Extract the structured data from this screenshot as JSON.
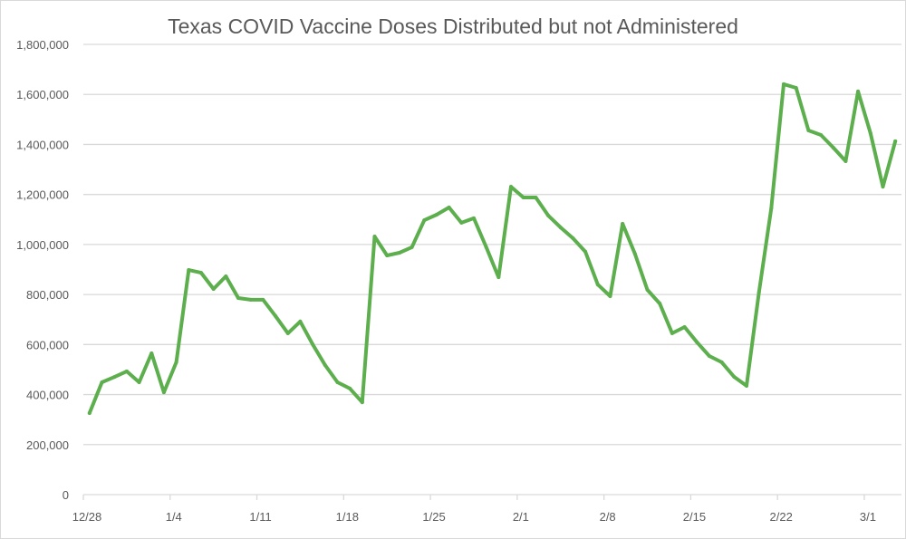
{
  "chart_data": {
    "type": "line",
    "title": "Texas COVID Vaccine Doses Distributed but not Administered",
    "xlabel": "",
    "ylabel": "",
    "ylim": [
      0,
      1800000
    ],
    "y_ticks": [
      0,
      200000,
      400000,
      600000,
      800000,
      1000000,
      1200000,
      1400000,
      1600000,
      1800000
    ],
    "y_tick_labels": [
      "0",
      "200,000",
      "400,000",
      "600,000",
      "800,000",
      "1,000,000",
      "1,200,000",
      "1,400,000",
      "1,600,000",
      "1,800,000"
    ],
    "x_tick_labels": [
      "12/28",
      "1/4",
      "1/11",
      "1/18",
      "1/25",
      "2/1",
      "2/8",
      "2/15",
      "2/22",
      "3/1"
    ],
    "grid": true,
    "legend": "none",
    "series": [
      {
        "name": "Doses distributed but not administered",
        "color": "#5daf4e",
        "x": [
          "12/28",
          "12/29",
          "12/30",
          "12/31",
          "1/1",
          "1/2",
          "1/3",
          "1/4",
          "1/5",
          "1/6",
          "1/7",
          "1/8",
          "1/9",
          "1/10",
          "1/11",
          "1/12",
          "1/13",
          "1/14",
          "1/15",
          "1/16",
          "1/17",
          "1/18",
          "1/19",
          "1/20",
          "1/21",
          "1/22",
          "1/23",
          "1/24",
          "1/25",
          "1/26",
          "1/27",
          "1/28",
          "1/29",
          "1/30",
          "1/31",
          "2/1",
          "2/2",
          "2/3",
          "2/4",
          "2/5",
          "2/6",
          "2/7",
          "2/8",
          "2/9",
          "2/10",
          "2/11",
          "2/12",
          "2/13",
          "2/14",
          "2/15",
          "2/16",
          "2/17",
          "2/18",
          "2/19",
          "2/20",
          "2/21",
          "2/22",
          "2/23",
          "2/24",
          "2/25",
          "2/26",
          "2/27",
          "2/28",
          "3/1",
          "3/2",
          "3/3"
        ],
        "values": [
          326000,
          449000,
          470000,
          493000,
          449000,
          565000,
          409000,
          529000,
          898000,
          887000,
          822000,
          873000,
          786000,
          779000,
          779000,
          714000,
          645000,
          692000,
          601000,
          518000,
          449000,
          424000,
          369000,
          1032000,
          956000,
          967000,
          989000,
          1097000,
          1119000,
          1148000,
          1087000,
          1105000,
          989000,
          869000,
          1231000,
          1188000,
          1188000,
          1116000,
          1068000,
          1025000,
          971000,
          840000,
          793000,
          1083000,
          963000,
          819000,
          764000,
          645000,
          670000,
          609000,
          554000,
          529000,
          471000,
          435000,
          808000,
          1145000,
          1641000,
          1626000,
          1456000,
          1438000,
          1387000,
          1333000,
          1612000,
          1445000,
          1231000,
          1413000
        ]
      }
    ]
  }
}
